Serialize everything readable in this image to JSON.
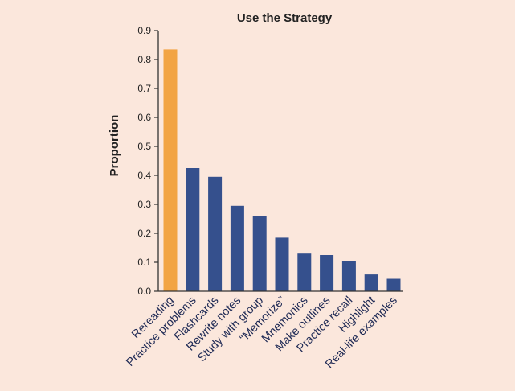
{
  "chart_data": {
    "type": "bar",
    "title": "Use the Strategy",
    "ylabel": "Proportion",
    "xlabel": "",
    "ylim": [
      0,
      0.9
    ],
    "yticks": [
      "0.0",
      "0.1",
      "0.2",
      "0.3",
      "0.4",
      "0.5",
      "0.6",
      "0.7",
      "0.8",
      "0.9"
    ],
    "categories": [
      "Rereading",
      "Practice problems",
      "Flashcards",
      "Rewrite notes",
      "Study with group",
      "“Memorize”",
      "Mnemonics",
      "Make outlines",
      "Practice recall",
      "Highlight",
      "Real-life examples"
    ],
    "values": [
      0.835,
      0.425,
      0.395,
      0.295,
      0.26,
      0.185,
      0.13,
      0.125,
      0.105,
      0.058,
      0.043
    ],
    "colors": {
      "highlight_bar": "#f2a443",
      "bar": "#35508d",
      "axis": "#333333",
      "background": "#fbe7dc"
    },
    "highlight_index": 0,
    "grid": false,
    "legend": "none"
  }
}
